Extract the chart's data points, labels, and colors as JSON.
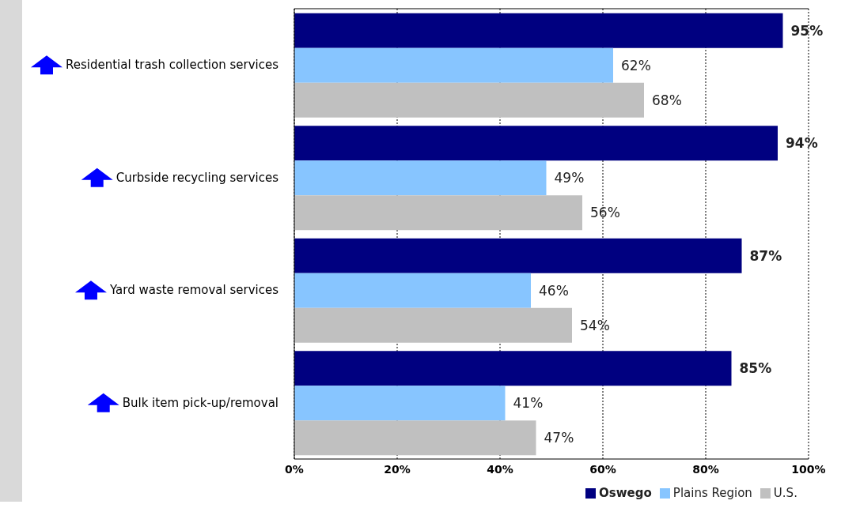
{
  "chart_data": {
    "type": "bar",
    "orientation": "horizontal",
    "categories": [
      "Residential trash collection services",
      "Curbside recycling services",
      "Yard waste removal services",
      "Bulk item pick-up/removal"
    ],
    "series": [
      {
        "name": "Oswego",
        "color": "#000080",
        "values": [
          95,
          94,
          87,
          85
        ],
        "value_labels": [
          "95%",
          "94%",
          "87%",
          "85%"
        ]
      },
      {
        "name": "Plains Region",
        "color": "#87c5ff",
        "values": [
          62,
          49,
          46,
          41
        ],
        "value_labels": [
          "62%",
          "49%",
          "46%",
          "41%"
        ]
      },
      {
        "name": "U.S.",
        "color": "#c0c0c0",
        "values": [
          68,
          56,
          54,
          47
        ],
        "value_labels": [
          "68%",
          "56%",
          "54%",
          "47%"
        ]
      }
    ],
    "xlim": [
      0,
      100
    ],
    "xticks": [
      {
        "value": 0,
        "label": "0%"
      },
      {
        "value": 20,
        "label": "20%"
      },
      {
        "value": 40,
        "label": "40%"
      },
      {
        "value": 60,
        "label": "60%"
      },
      {
        "value": 80,
        "label": "80%"
      },
      {
        "value": 100,
        "label": "100%"
      }
    ],
    "grid": "x",
    "legend": "bottom"
  }
}
